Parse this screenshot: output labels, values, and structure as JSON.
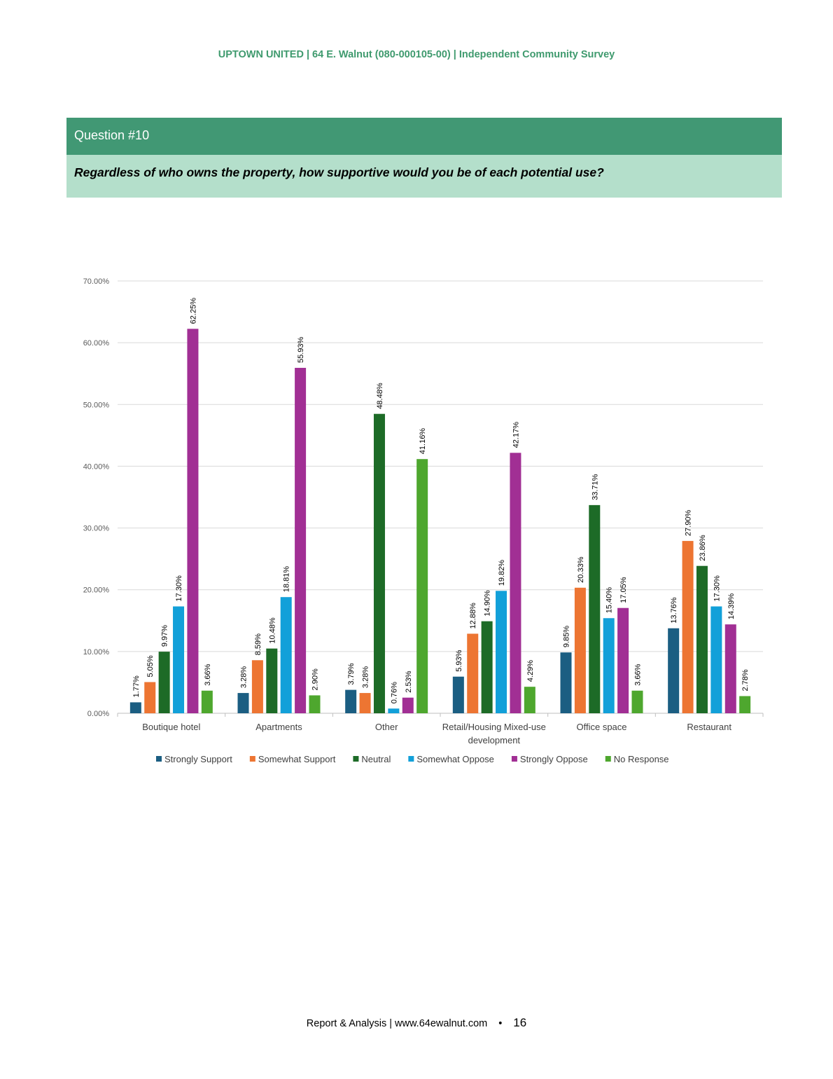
{
  "header": {
    "text": "UPTOWN UNITED | 64 E. Walnut (080-000105-00) | Independent Community Survey"
  },
  "question": {
    "number": "Question #10",
    "text": "Regardless of who owns the property, how supportive would you be of each potential use?"
  },
  "chart_data": {
    "type": "bar",
    "categories": [
      "Boutique hotel",
      "Apartments",
      "Other",
      "Retail/Housing Mixed-use development",
      "Office space",
      "Restaurant"
    ],
    "category_lines": [
      [
        "Boutique hotel"
      ],
      [
        "Apartments"
      ],
      [
        "Other"
      ],
      [
        "Retail/Housing Mixed-use",
        "development"
      ],
      [
        "Office space"
      ],
      [
        "Restaurant"
      ]
    ],
    "series": [
      {
        "name": "Strongly Support",
        "color": "#1b5e82",
        "values": [
          1.77,
          3.28,
          3.79,
          5.93,
          9.85,
          13.76
        ],
        "labels": [
          "1.77%",
          "3.28%",
          "3.79%",
          "5.93%",
          "9.85%",
          "13.76%"
        ]
      },
      {
        "name": "Somewhat Support",
        "color": "#ed7532",
        "values": [
          5.05,
          8.59,
          3.28,
          12.88,
          20.33,
          27.9
        ],
        "labels": [
          "5.05%",
          "8.59%",
          "3.28%",
          "12.88%",
          "20.33%",
          "27.90%"
        ]
      },
      {
        "name": "Neutral",
        "color": "#1d6b27",
        "values": [
          9.97,
          10.48,
          48.48,
          14.9,
          33.71,
          23.86
        ],
        "labels": [
          "9.97%",
          "10.48%",
          "48.48%",
          "14.90%",
          "33.71%",
          "23.86%"
        ]
      },
      {
        "name": "Somewhat Oppose",
        "color": "#12a0d9",
        "values": [
          17.3,
          18.81,
          0.76,
          19.82,
          15.4,
          17.3
        ],
        "labels": [
          "17.30%",
          "18.81%",
          "0.76%",
          "19.82%",
          "15.40%",
          "17.30%"
        ]
      },
      {
        "name": "Strongly Oppose",
        "color": "#a12f94",
        "values": [
          62.25,
          55.93,
          2.53,
          42.17,
          17.05,
          14.39
        ],
        "labels": [
          "62.25%",
          "55.93%",
          "2.53%",
          "42.17%",
          "17.05%",
          "14.39%"
        ]
      },
      {
        "name": "No Response",
        "color": "#4ea72e",
        "values": [
          3.66,
          2.9,
          41.16,
          4.29,
          3.66,
          2.78
        ],
        "labels": [
          "3.66%",
          "2.90%",
          "41.16%",
          "4.29%",
          "3.66%",
          "2.78%"
        ]
      }
    ],
    "ylim": [
      0,
      70
    ],
    "yticks": [
      0,
      10,
      20,
      30,
      40,
      50,
      60,
      70
    ],
    "ytick_labels": [
      "0.00%",
      "10.00%",
      "20.00%",
      "30.00%",
      "40.00%",
      "50.00%",
      "60.00%",
      "70.00%"
    ],
    "grid": true,
    "legend_position": "bottom",
    "title": "",
    "xlabel": "",
    "ylabel": ""
  },
  "footer": {
    "text": "Report & Analysis | www.64ewalnut.com",
    "separator": "•",
    "page": "16"
  }
}
